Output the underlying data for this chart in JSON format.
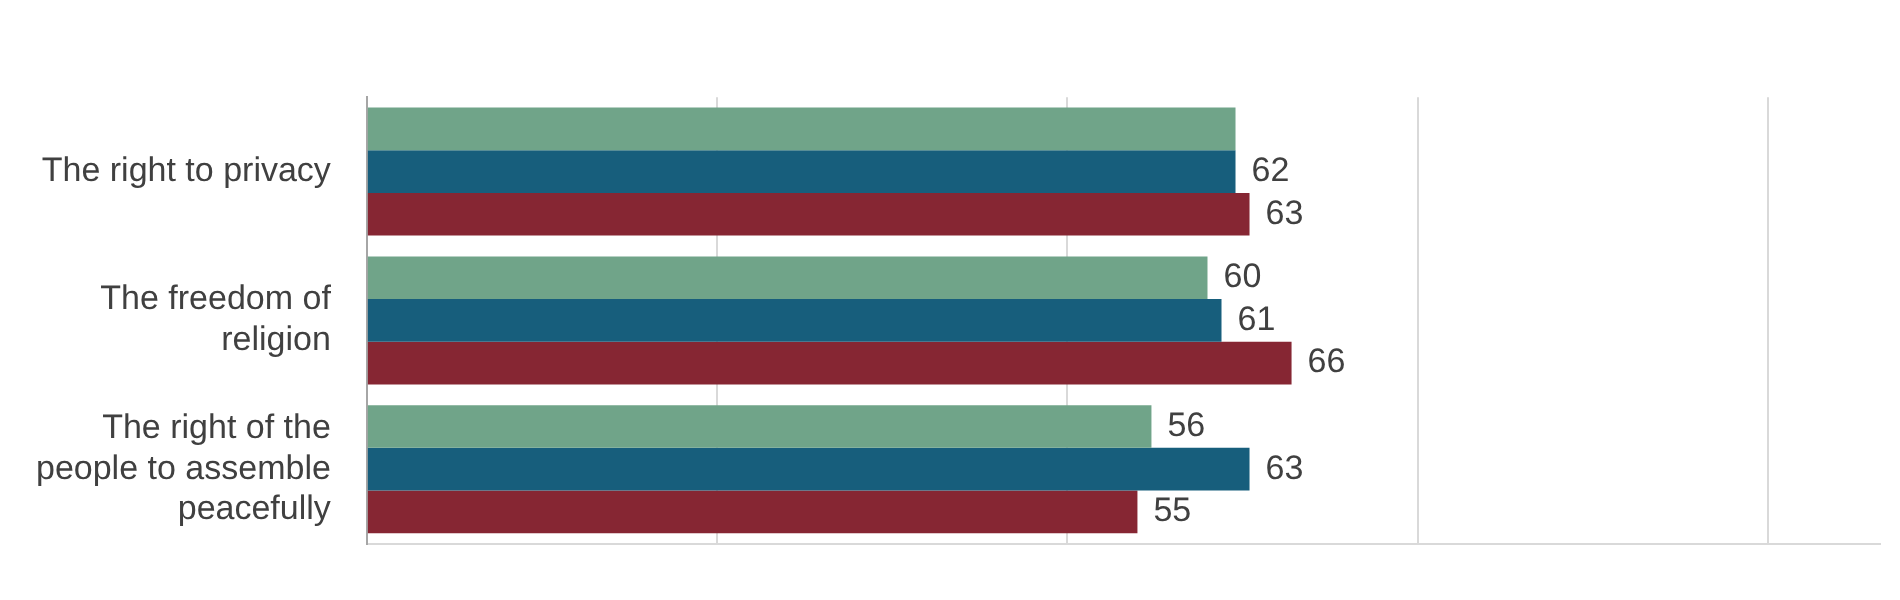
{
  "chart_data": {
    "type": "bar",
    "orientation": "horizontal",
    "categories": [
      "The right to privacy",
      "The freedom of religion",
      "The right of the people to assemble peacefully"
    ],
    "series": [
      {
        "color": "#70a489",
        "values": [
          62,
          60,
          56
        ],
        "value_labels": [
          null,
          "60",
          "56"
        ]
      },
      {
        "color": "#175e7c",
        "values": [
          62,
          61,
          63
        ],
        "value_labels": [
          "62",
          "61",
          "63"
        ]
      },
      {
        "color": "#862633",
        "values": [
          63,
          66,
          55
        ],
        "value_labels": [
          "63",
          "66",
          "55"
        ]
      }
    ],
    "xlim": [
      0,
      108
    ],
    "xticks": [
      {
        "value": 0,
        "label": null
      },
      {
        "value": 25,
        "label": null
      },
      {
        "value": 50,
        "label": null
      },
      {
        "value": 75,
        "label": null
      },
      {
        "value": 100,
        "label": null
      }
    ],
    "grid": "x",
    "legend": false,
    "tick_labels": "y"
  }
}
